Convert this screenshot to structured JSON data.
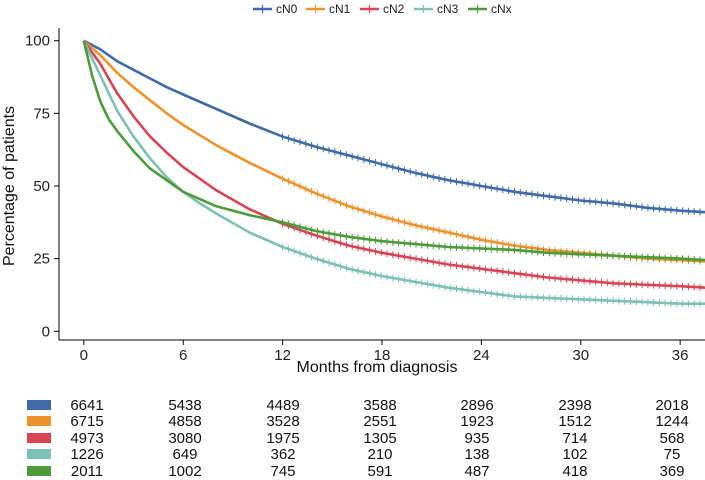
{
  "chart_data": {
    "type": "line",
    "title": "",
    "xlabel": "Months from diagnosis",
    "ylabel": "Percentage of patients",
    "xlim": [
      -1.5,
      37.5
    ],
    "ylim": [
      -3,
      103
    ],
    "x_ticks": [
      0,
      6,
      12,
      18,
      24,
      30,
      36
    ],
    "y_ticks": [
      0,
      25,
      50,
      75,
      100
    ],
    "grid": false,
    "legend_position": "top-center",
    "series": [
      {
        "name": "cN0",
        "color": "#3E6BA8",
        "x": [
          0,
          1,
          2,
          3,
          4,
          5,
          6,
          8,
          10,
          12,
          14,
          16,
          18,
          20,
          22,
          24,
          26,
          28,
          30,
          32,
          34,
          36,
          37.5
        ],
        "y": [
          100,
          97,
          93,
          90,
          87,
          84,
          81.5,
          76.5,
          71.5,
          67,
          63.5,
          60.5,
          57.5,
          54.5,
          52,
          50,
          48,
          46.5,
          45,
          44,
          42.5,
          41.5,
          41
        ]
      },
      {
        "name": "cN1",
        "color": "#F0922B",
        "x": [
          0,
          1,
          2,
          3,
          4,
          5,
          6,
          8,
          10,
          12,
          14,
          16,
          18,
          20,
          22,
          24,
          26,
          28,
          30,
          32,
          34,
          36,
          37.5
        ],
        "y": [
          100,
          95,
          89,
          84,
          79.5,
          75,
          71,
          64,
          58,
          52.5,
          47.5,
          43,
          39.5,
          36.5,
          34,
          31.5,
          29.5,
          28,
          27,
          26,
          25,
          24.5,
          24
        ]
      },
      {
        "name": "cN2",
        "color": "#D94452",
        "x": [
          0,
          1,
          2,
          3,
          4,
          5,
          6,
          8,
          10,
          12,
          14,
          16,
          18,
          20,
          22,
          24,
          26,
          28,
          30,
          32,
          34,
          36,
          37.5
        ],
        "y": [
          100,
          92,
          82,
          74,
          67,
          61.5,
          56.5,
          48.5,
          42,
          37,
          33,
          29.5,
          27,
          25,
          23,
          21.5,
          20,
          18.5,
          17.5,
          16.5,
          16,
          15.5,
          15
        ]
      },
      {
        "name": "cN3",
        "color": "#7CC0B8",
        "x": [
          0,
          1,
          2,
          3,
          4,
          5,
          6,
          7,
          8,
          10,
          12,
          14,
          16,
          18,
          20,
          22,
          24,
          26,
          28,
          30,
          32,
          34,
          36,
          37.5
        ],
        "y": [
          100,
          88,
          76,
          67,
          59.5,
          53,
          48,
          44,
          40.5,
          34,
          29,
          25,
          21.5,
          19,
          17,
          15,
          13.5,
          12,
          11.5,
          11,
          10.5,
          10,
          9.5,
          9.5
        ]
      },
      {
        "name": "cNx",
        "color": "#4C9A3A",
        "x": [
          0,
          0.5,
          1,
          1.5,
          2,
          3,
          4,
          5,
          6,
          7,
          8,
          10,
          12,
          14,
          16,
          18,
          20,
          22,
          24,
          26,
          28,
          30,
          32,
          34,
          36,
          37.5
        ],
        "y": [
          100,
          88,
          79,
          73,
          69,
          62,
          56,
          52,
          48,
          45.5,
          43,
          40,
          37.5,
          34.5,
          32.5,
          31,
          30,
          29,
          28.5,
          28,
          27,
          26.5,
          26,
          25.5,
          25,
          24.5
        ]
      }
    ],
    "risk_table": {
      "times": [
        0,
        6,
        12,
        18,
        24,
        30,
        36
      ],
      "rows": [
        {
          "name": "cN0",
          "color": "#3E6BA8",
          "values": [
            "6641",
            "5438",
            "4489",
            "3588",
            "2896",
            "2398",
            "2018"
          ]
        },
        {
          "name": "cN1",
          "color": "#F0922B",
          "values": [
            "6715",
            "4858",
            "3528",
            "2551",
            "1923",
            "1512",
            "1244"
          ]
        },
        {
          "name": "cN2",
          "color": "#D94452",
          "values": [
            "4973",
            "3080",
            "1975",
            "1305",
            "935",
            "714",
            "568"
          ]
        },
        {
          "name": "cN3",
          "color": "#7CC0B8",
          "values": [
            "1226",
            "649",
            "362",
            "210",
            "138",
            "102",
            "75"
          ]
        },
        {
          "name": "cNx",
          "color": "#4C9A3A",
          "values": [
            "2011",
            "1002",
            "745",
            "591",
            "487",
            "418",
            "369"
          ]
        }
      ]
    }
  }
}
